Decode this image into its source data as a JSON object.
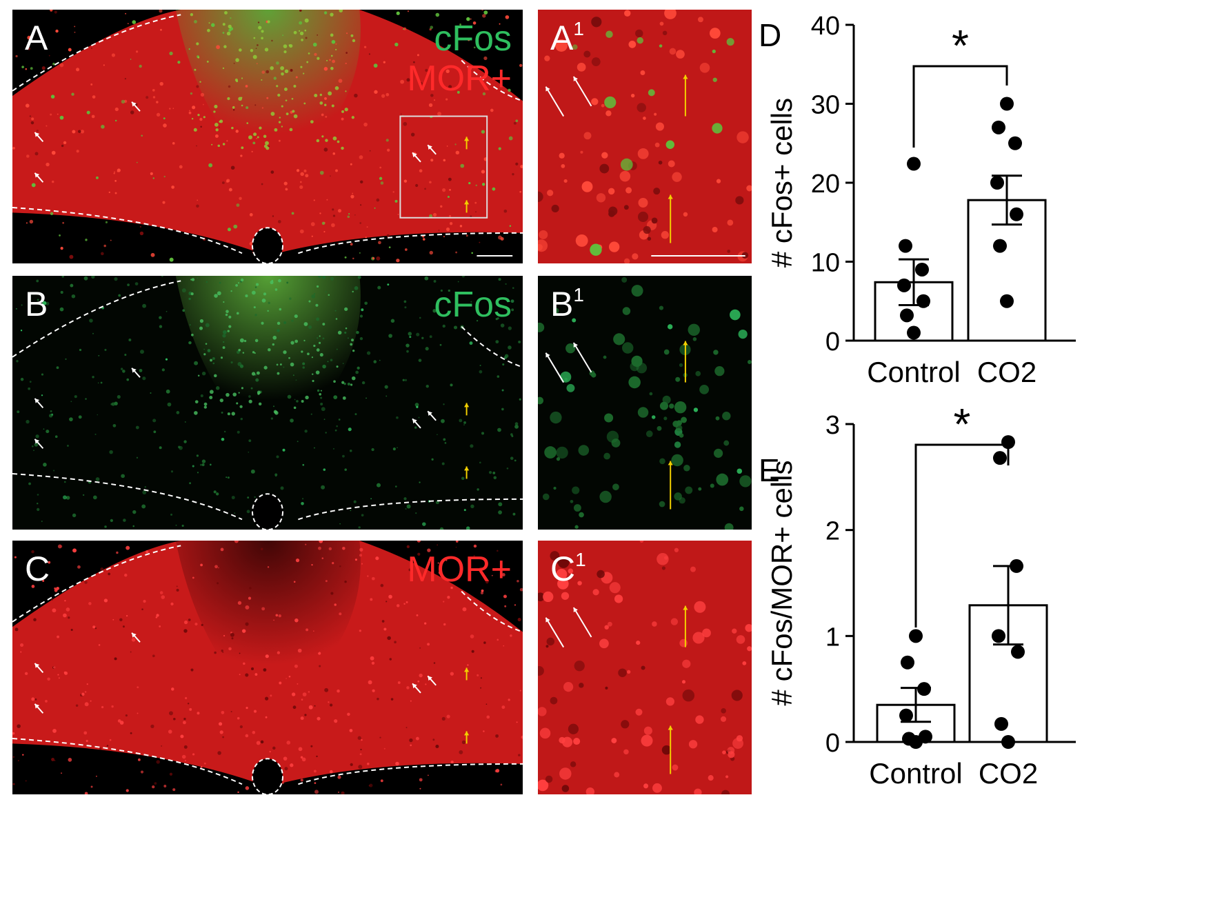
{
  "panels": [
    {
      "id": "A",
      "label": "A",
      "sup": "",
      "channels": [
        "cFos",
        "MOR+"
      ],
      "bg": "merge"
    },
    {
      "id": "A1",
      "label": "A",
      "sup": "1",
      "channels": [],
      "bg": "merge"
    },
    {
      "id": "B",
      "label": "B",
      "sup": "",
      "channels": [
        "cFos"
      ],
      "bg": "green"
    },
    {
      "id": "B1",
      "label": "B",
      "sup": "1",
      "channels": [],
      "bg": "green"
    },
    {
      "id": "C",
      "label": "C",
      "sup": "",
      "channels": [
        "MOR+"
      ],
      "bg": "red"
    },
    {
      "id": "C1",
      "label": "C",
      "sup": "1",
      "channels": [],
      "bg": "red"
    }
  ],
  "colors": {
    "cfos": "#2fbf5f",
    "mor": "#ff2a2a",
    "arrow_white": "#ffffff",
    "arrow_yellow": "#f2d000"
  },
  "chart_data": [
    {
      "panel_label": "D",
      "type": "bar",
      "categories": [
        "Control",
        "CO2"
      ],
      "values": [
        7.4,
        17.8
      ],
      "sem": [
        2.9,
        3.1
      ],
      "points": [
        [
          22.4,
          12,
          9,
          7,
          5,
          3.2,
          1
        ],
        [
          30,
          27,
          25,
          20,
          16,
          12,
          5
        ]
      ],
      "ylabel": "# cFos+ cells",
      "ylim": [
        0,
        40
      ],
      "yticks": [
        0,
        10,
        20,
        30,
        40
      ],
      "significance": "*"
    },
    {
      "panel_label": "E",
      "type": "bar",
      "categories": [
        "Control",
        "CO2"
      ],
      "values": [
        0.35,
        1.29
      ],
      "sem": [
        0.16,
        0.37
      ],
      "points": [
        [
          1.0,
          0.75,
          0.5,
          0.25,
          0.05,
          0.03,
          0.0
        ],
        [
          2.83,
          2.68,
          1.66,
          1.0,
          0.85,
          0.17,
          0.0
        ]
      ],
      "ylabel": "# cFos/MOR+ cells",
      "ylim": [
        0,
        3
      ],
      "yticks": [
        0,
        1,
        2,
        3
      ],
      "significance": "*"
    }
  ]
}
